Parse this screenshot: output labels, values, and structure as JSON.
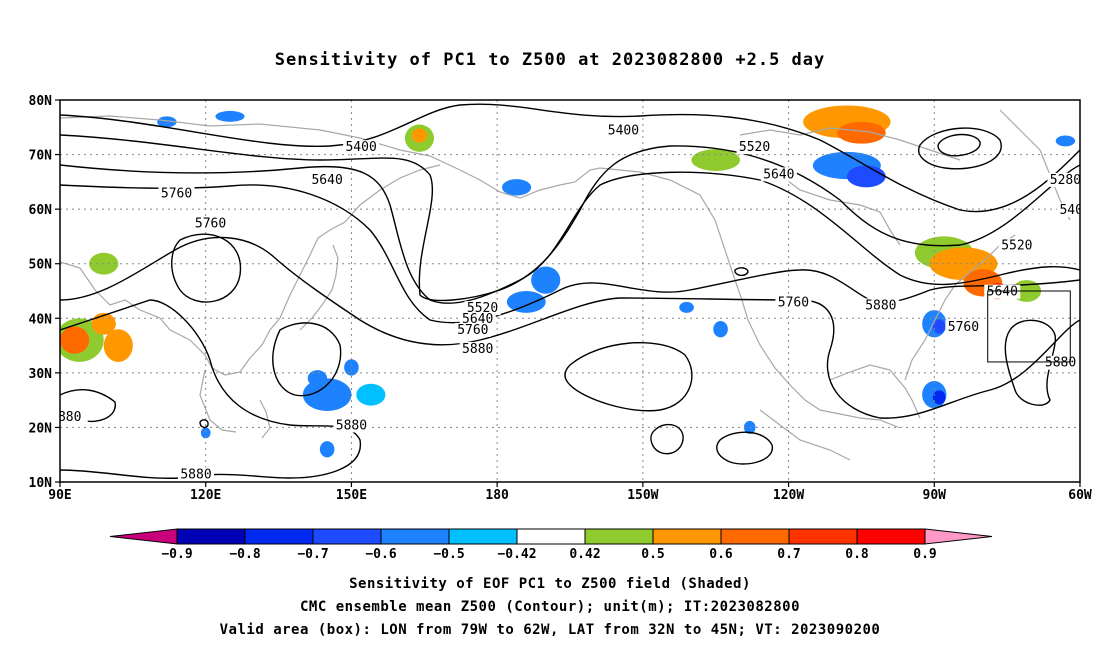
{
  "title": "Sensitivity of PC1 to Z500 at 2023082800 +2.5 day",
  "map": {
    "lon_labels": [
      "90E",
      "120E",
      "150E",
      "180",
      "150W",
      "120W",
      "90W",
      "60W"
    ],
    "lat_labels": [
      "10N",
      "20N",
      "30N",
      "40N",
      "50N",
      "60N",
      "70N",
      "80N"
    ],
    "extent": {
      "lon": [
        90,
        300
      ],
      "lat": [
        10,
        80
      ]
    },
    "grid": "dotted",
    "valid_box": {
      "lon": [
        -79,
        -62
      ],
      "lat": [
        32,
        45
      ]
    }
  },
  "contours": {
    "labels": [
      {
        "text": "5400",
        "lon": 152,
        "lat": 71
      },
      {
        "text": "5640",
        "lon": 145,
        "lat": 65
      },
      {
        "text": "5760",
        "lon": 114,
        "lat": 62.5
      },
      {
        "text": "5760",
        "lon": 121,
        "lat": 57
      },
      {
        "text": "5880",
        "lon": 150,
        "lat": 20
      },
      {
        "text": "5880",
        "lon": 118,
        "lat": 11
      },
      {
        "text": "880",
        "lon": 92,
        "lat": 21.5
      },
      {
        "text": "5520",
        "lon": 177,
        "lat": 41.5
      },
      {
        "text": "5640",
        "lon": 176,
        "lat": 39.5
      },
      {
        "text": "5760",
        "lon": 175,
        "lat": 37.5
      },
      {
        "text": "5880",
        "lon": 176,
        "lat": 34
      },
      {
        "text": "5400",
        "lon": -154,
        "lat": 74
      },
      {
        "text": "5520",
        "lon": -127,
        "lat": 71
      },
      {
        "text": "5640",
        "lon": -122,
        "lat": 66
      },
      {
        "text": "5760",
        "lon": -119,
        "lat": 42.5
      },
      {
        "text": "5880",
        "lon": -101,
        "lat": 42
      },
      {
        "text": "5280",
        "lon": -63,
        "lat": 65
      },
      {
        "text": "5400",
        "lon": -61,
        "lat": 59.5
      },
      {
        "text": "5520",
        "lon": -73,
        "lat": 53
      },
      {
        "text": "5640",
        "lon": -76,
        "lat": 44.5
      },
      {
        "text": "5760",
        "lon": -84,
        "lat": 38
      },
      {
        "text": "5880",
        "lon": -64,
        "lat": 31.5
      }
    ]
  },
  "shading": {
    "blobs": [
      {
        "lon": -108,
        "lat": 76,
        "rx": 9,
        "ry": 3,
        "val": 0.55
      },
      {
        "lon": -105,
        "lat": 74,
        "rx": 5,
        "ry": 2,
        "val": 0.6
      },
      {
        "lon": 164,
        "lat": 73,
        "rx": 3,
        "ry": 2.5,
        "val": 0.48
      },
      {
        "lon": 164,
        "lat": 73.5,
        "rx": 1.6,
        "ry": 1.3,
        "val": 0.55
      },
      {
        "lon": -135,
        "lat": 69,
        "rx": 5,
        "ry": 2,
        "val": 0.46
      },
      {
        "lon": -108,
        "lat": 68,
        "rx": 7,
        "ry": 2.5,
        "val": -0.5
      },
      {
        "lon": -104,
        "lat": 66,
        "rx": 4,
        "ry": 2,
        "val": -0.6
      },
      {
        "lon": 184,
        "lat": 64,
        "rx": 3,
        "ry": 1.5,
        "val": -0.55
      },
      {
        "lon": 99,
        "lat": 50,
        "rx": 3,
        "ry": 2,
        "val": 0.45
      },
      {
        "lon": -88,
        "lat": 52,
        "rx": 6,
        "ry": 3,
        "val": 0.46
      },
      {
        "lon": -84,
        "lat": 50,
        "rx": 7,
        "ry": 3,
        "val": 0.55
      },
      {
        "lon": -80,
        "lat": 46.5,
        "rx": 4,
        "ry": 2.5,
        "val": 0.62
      },
      {
        "lon": -77,
        "lat": 45,
        "rx": 2,
        "ry": 1.5,
        "val": 0.7
      },
      {
        "lon": -71,
        "lat": 45,
        "rx": 3,
        "ry": 2,
        "val": 0.45
      },
      {
        "lon": -90,
        "lat": 39,
        "rx": 2.5,
        "ry": 2.5,
        "val": -0.5
      },
      {
        "lon": -89,
        "lat": 38.5,
        "rx": 1.3,
        "ry": 1.3,
        "val": -0.62
      },
      {
        "lon": -90,
        "lat": 26,
        "rx": 2.5,
        "ry": 2.5,
        "val": -0.5
      },
      {
        "lon": -89,
        "lat": 25.5,
        "rx": 1.3,
        "ry": 1.3,
        "val": -0.7
      },
      {
        "lon": -52,
        "lat": 50.5,
        "rx": 5,
        "ry": 2.5,
        "val": -0.5
      },
      {
        "lon": -50,
        "lat": 51,
        "rx": 3,
        "ry": 1.5,
        "val": -0.62
      },
      {
        "lon": -49,
        "lat": 51,
        "rx": 1.5,
        "ry": 0.8,
        "val": -0.72
      },
      {
        "lon": -52,
        "lat": 62,
        "rx": 4,
        "ry": 3,
        "val": -0.5
      },
      {
        "lon": -63,
        "lat": 72.5,
        "rx": 2,
        "ry": 1,
        "val": -0.5
      },
      {
        "lon": 94,
        "lat": 36,
        "rx": 5,
        "ry": 4,
        "val": 0.48
      },
      {
        "lon": 93,
        "lat": 36,
        "rx": 3,
        "ry": 2.5,
        "val": 0.6
      },
      {
        "lon": 102,
        "lat": 35,
        "rx": 3,
        "ry": 3,
        "val": 0.55
      },
      {
        "lon": 99,
        "lat": 39,
        "rx": 2.5,
        "ry": 2,
        "val": 0.5
      },
      {
        "lon": 145,
        "lat": 26,
        "rx": 5,
        "ry": 3,
        "val": -0.5
      },
      {
        "lon": 154,
        "lat": 26,
        "rx": 3,
        "ry": 2,
        "val": -0.48
      },
      {
        "lon": 145,
        "lat": 16,
        "rx": 1.5,
        "ry": 1.5,
        "val": -0.55
      },
      {
        "lon": 143,
        "lat": 29,
        "rx": 2,
        "ry": 1.5,
        "val": -0.5
      },
      {
        "lon": 150,
        "lat": 31,
        "rx": 1.5,
        "ry": 1.5,
        "val": -0.5
      },
      {
        "lon": 190,
        "lat": 47,
        "rx": 3,
        "ry": 2.5,
        "val": -0.5
      },
      {
        "lon": 186,
        "lat": 43,
        "rx": 4,
        "ry": 2,
        "val": -0.5
      },
      {
        "lon": -141,
        "lat": 42,
        "rx": 1.5,
        "ry": 1,
        "val": -0.5
      },
      {
        "lon": -134,
        "lat": 38,
        "rx": 1.5,
        "ry": 1.5,
        "val": -0.55
      },
      {
        "lon": -128,
        "lat": 20,
        "rx": 1.2,
        "ry": 1.2,
        "val": -0.55
      },
      {
        "lon": 112,
        "lat": 76,
        "rx": 2,
        "ry": 1,
        "val": -0.5
      },
      {
        "lon": 125,
        "lat": 77,
        "rx": 3,
        "ry": 1,
        "val": -0.5
      },
      {
        "lon": 120,
        "lat": 19,
        "rx": 1,
        "ry": 1,
        "val": -0.5
      }
    ]
  },
  "colorbar": {
    "colors": [
      "#c8007a",
      "#0000b4",
      "#0028ee",
      "#1e4bff",
      "#1e82ff",
      "#00c0ff",
      "#ffffff",
      "#8fcb2f",
      "#ff9800",
      "#ff6a00",
      "#ff3300",
      "#ff0000",
      "#ff99c8"
    ],
    "labels": [
      "−0.9",
      "−0.8",
      "−0.7",
      "−0.6",
      "−0.5",
      "−0.42",
      "0.42",
      "0.5",
      "0.6",
      "0.7",
      "0.8",
      "0.9"
    ]
  },
  "captions": [
    "Sensitivity of EOF PC1 to Z500 field (Shaded)",
    "CMC ensemble mean Z500 (Contour); unit(m); IT:2023082800",
    "Valid area (box): LON from 79W to 62W, LAT from 32N to 45N; VT: 2023090200"
  ]
}
